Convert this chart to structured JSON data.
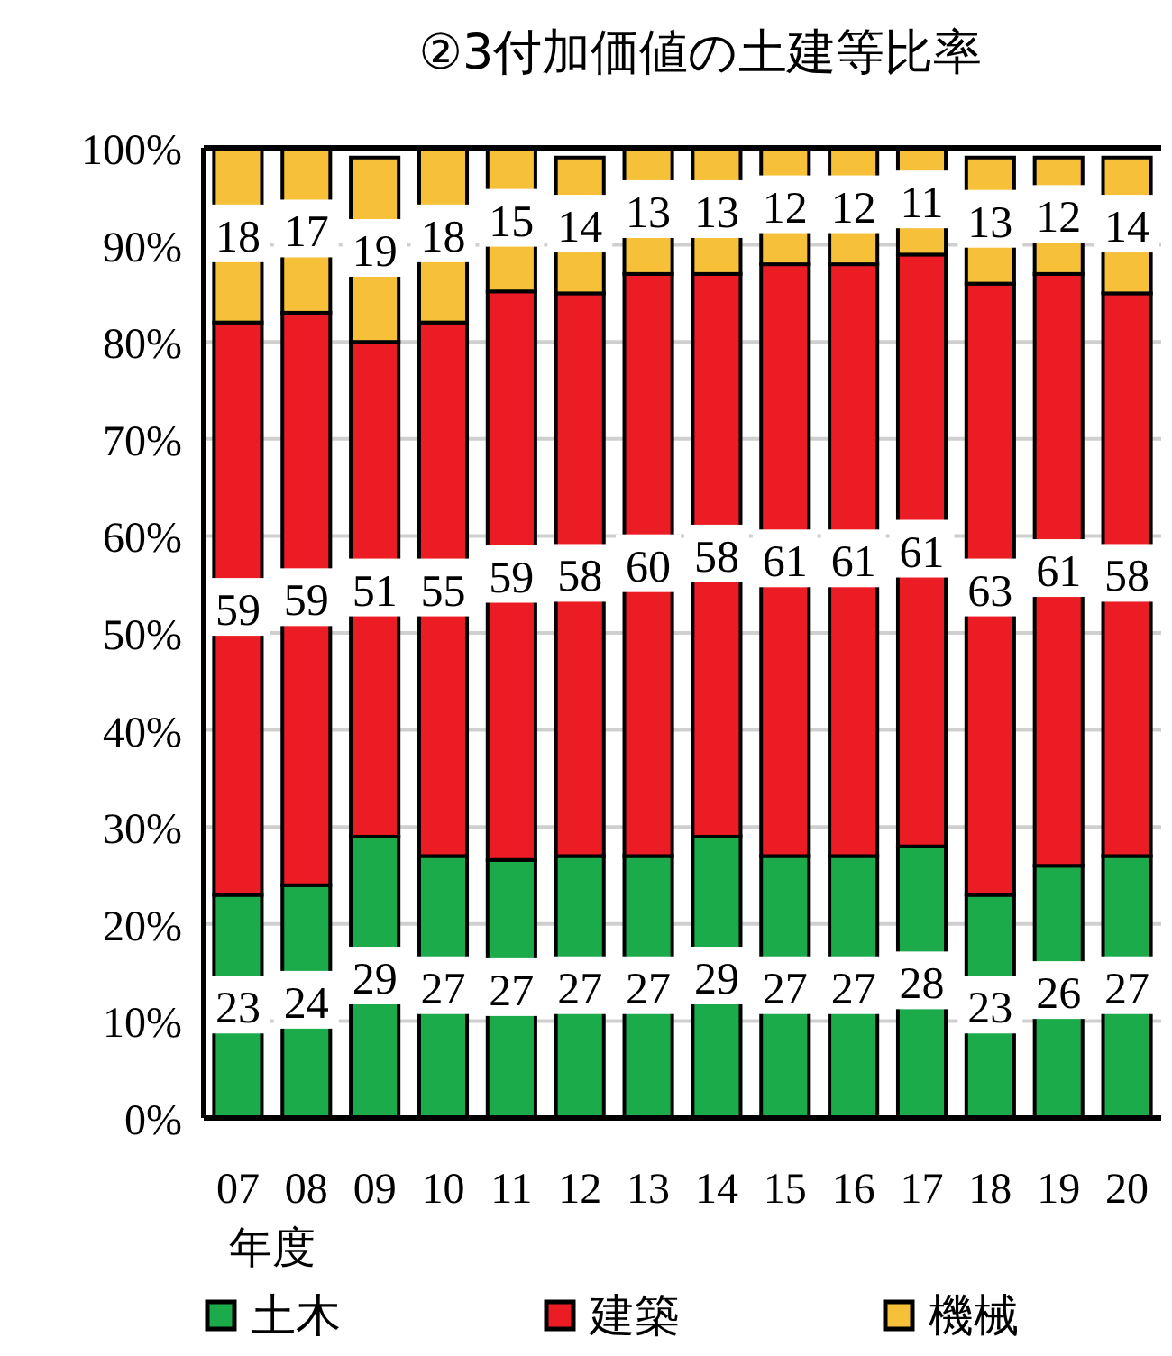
{
  "chart_data": {
    "type": "bar",
    "stacked": true,
    "title": "②3付加価値の土建等比率",
    "xlabel": "年度",
    "categories": [
      "07",
      "08",
      "09",
      "10",
      "11",
      "12",
      "13",
      "14",
      "15",
      "16",
      "17",
      "18",
      "19",
      "20"
    ],
    "series": [
      {
        "name": "土木",
        "color": "#1bab4b",
        "values": [
          23,
          24,
          29,
          27,
          26.6,
          27,
          27,
          29,
          27,
          27,
          28,
          23,
          26,
          27
        ],
        "value_labels": [
          "23",
          "24",
          "29",
          "27",
          "27",
          "27",
          "27",
          "29",
          "27",
          "27",
          "28",
          "23",
          "26",
          "27"
        ]
      },
      {
        "name": "建築",
        "color": "#ec1c24",
        "values": [
          59,
          59,
          51,
          55,
          58.6,
          58,
          60,
          58,
          61,
          61,
          61,
          63,
          61,
          58
        ],
        "value_labels": [
          "59",
          "59",
          "51",
          "55",
          "59",
          "58",
          "60",
          "58",
          "61",
          "61",
          "61",
          "63",
          "61",
          "58"
        ]
      },
      {
        "name": "機械",
        "color": "#f6c138",
        "values": [
          18,
          17,
          19,
          18,
          14.8,
          14,
          13,
          13,
          12,
          12,
          11,
          13,
          12,
          14
        ],
        "value_labels": [
          "18",
          "17",
          "19",
          "18",
          "15",
          "14",
          "13",
          "13",
          "12",
          "12",
          "11",
          "13",
          "12",
          "14"
        ]
      }
    ],
    "ylim": [
      0,
      100
    ],
    "yticks": [
      {
        "value": 0,
        "label": "0%"
      },
      {
        "value": 10,
        "label": "10%"
      },
      {
        "value": 20,
        "label": "20%"
      },
      {
        "value": 30,
        "label": "30%"
      },
      {
        "value": 40,
        "label": "40%"
      },
      {
        "value": 50,
        "label": "50%"
      },
      {
        "value": 60,
        "label": "60%"
      },
      {
        "value": 70,
        "label": "70%"
      },
      {
        "value": 80,
        "label": "80%"
      },
      {
        "value": 90,
        "label": "90%"
      },
      {
        "value": 100,
        "label": "100%"
      }
    ],
    "grid": "y",
    "legend": "bottom"
  }
}
